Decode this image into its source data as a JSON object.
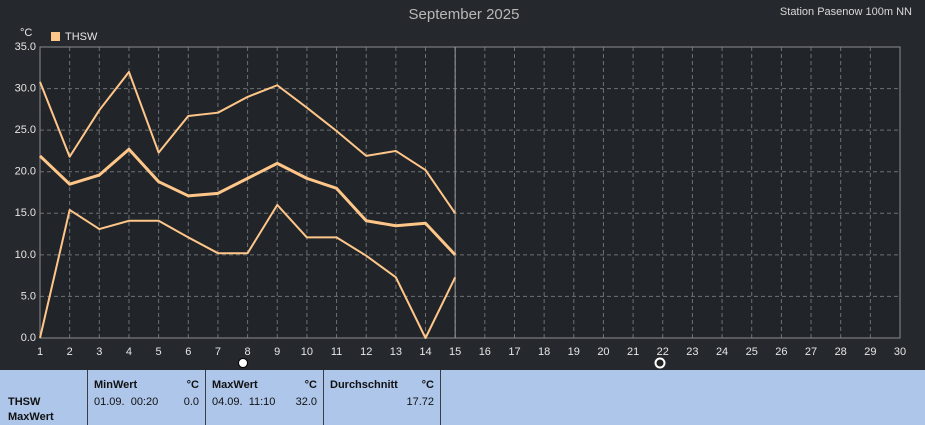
{
  "chart_data": {
    "type": "line",
    "title": "September 2025",
    "y_unit": "°C",
    "x": [
      1,
      2,
      3,
      4,
      5,
      6,
      7,
      8,
      9,
      10,
      11,
      12,
      13,
      14,
      15,
      16,
      17,
      18,
      19,
      20,
      21,
      22,
      23,
      24,
      25,
      26,
      27,
      28,
      29,
      30
    ],
    "series": [
      {
        "name": "THSW",
        "color": "#ffc68a",
        "values": [
          21.9,
          18.5,
          19.6,
          22.7,
          18.8,
          17.1,
          17.4,
          19.2,
          21.0,
          19.2,
          18.0,
          14.1,
          13.5,
          13.8,
          10.0,
          null,
          null,
          null,
          null,
          null,
          null,
          null,
          null,
          null,
          null,
          null,
          null,
          null,
          null,
          null
        ]
      },
      {
        "color": "#ffc68a",
        "values": [
          30.8,
          21.8,
          27.4,
          32.0,
          22.3,
          26.7,
          27.1,
          29.0,
          30.4,
          27.7,
          24.9,
          21.9,
          22.5,
          20.2,
          15.0,
          null,
          null,
          null,
          null,
          null,
          null,
          null,
          null,
          null,
          null,
          null,
          null,
          null,
          null,
          null
        ]
      },
      {
        "color": "#ffc68a",
        "values": [
          0.0,
          15.4,
          13.1,
          14.1,
          14.1,
          12.1,
          10.2,
          10.2,
          16.0,
          12.1,
          12.1,
          9.9,
          7.3,
          0.0,
          7.3,
          null,
          null,
          null,
          null,
          null,
          null,
          null,
          null,
          null,
          null,
          null,
          null,
          null,
          null,
          null
        ]
      }
    ],
    "xlim": [
      1,
      30
    ],
    "xticks": [
      1,
      2,
      3,
      4,
      5,
      6,
      7,
      8,
      9,
      10,
      11,
      12,
      13,
      14,
      15,
      16,
      17,
      18,
      19,
      20,
      21,
      22,
      23,
      24,
      25,
      26,
      27,
      28,
      29,
      30
    ],
    "ylim": [
      0,
      35
    ],
    "yticks": [
      {
        "value": 0,
        "label": "0.0"
      },
      {
        "value": 5,
        "label": "5.0"
      },
      {
        "value": 10,
        "label": "10.0"
      },
      {
        "value": 15,
        "label": "15.0"
      },
      {
        "value": 20,
        "label": "20.0"
      },
      {
        "value": 25,
        "label": "25.0"
      },
      {
        "value": 30,
        "label": "30.0"
      },
      {
        "value": 35,
        "label": "35.0"
      }
    ],
    "grid": true,
    "legend": "top-left"
  },
  "station": "Station Pasenow  100m NN",
  "summary": {
    "row_label": "THSW",
    "row_sublabel": "MaxWert",
    "columns": [
      {
        "title": "MinWert",
        "unit": "°C",
        "time": "01.09.  00:20",
        "value": "0.0"
      },
      {
        "title": "MaxWert",
        "unit": "°C",
        "time": "04.09.  11:10",
        "value": "32.0"
      },
      {
        "title": "Durchschnitt",
        "unit": "°C",
        "value": "17.72"
      }
    ]
  }
}
